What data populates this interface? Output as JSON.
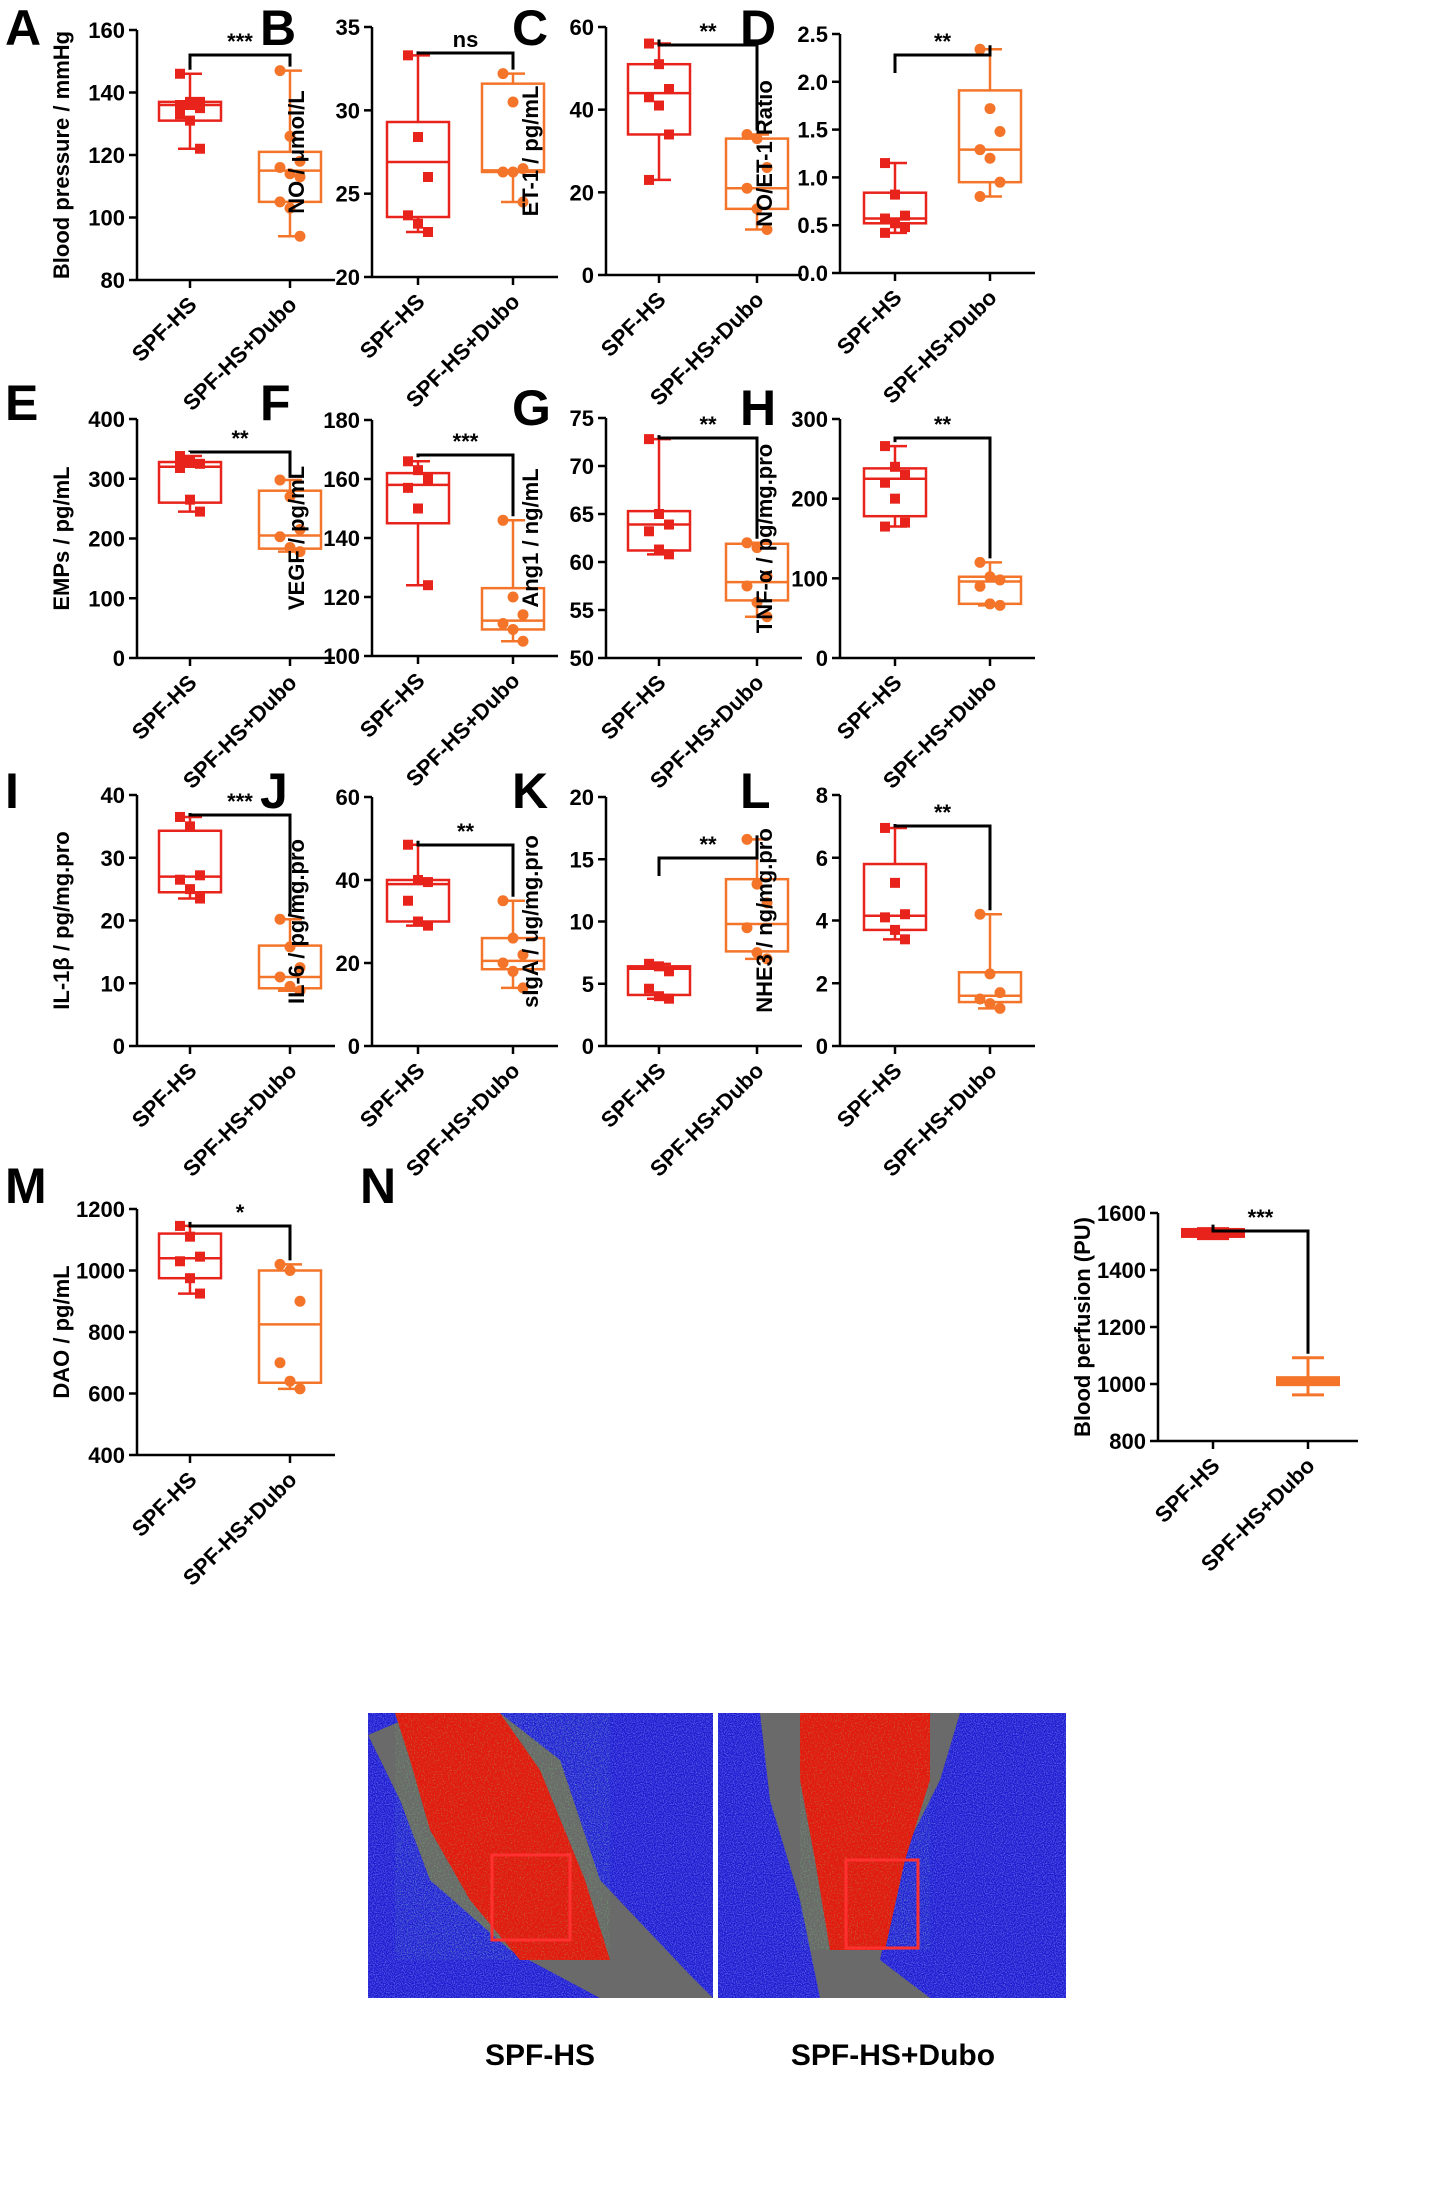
{
  "colors": {
    "group1": "#e8231c",
    "group2": "#f4752a",
    "axis": "#000000",
    "tissue_gray": "#6a6a6a",
    "perfusion_blue": "#1a1ad0",
    "perfusion_red": "#e21a10"
  },
  "group_labels": [
    "SPF-HS",
    "SPF-HS+Dubo"
  ],
  "images": {
    "left_label": "SPF-HS",
    "right_label": "SPF-HS+Dubo"
  },
  "chart_data": [
    {
      "id": "A",
      "letter": "A",
      "type": "box",
      "ylabel": "Blood pressure / mmHg",
      "ylim": [
        80,
        160
      ],
      "yticks": [
        80,
        100,
        120,
        140,
        160
      ],
      "significance": "***",
      "groups": [
        {
          "name": "SPF-HS",
          "min": 122,
          "q1": 131,
          "median": 136,
          "q3": 137,
          "max": 146,
          "points": [
            146,
            137,
            137,
            136,
            136,
            135,
            133,
            131,
            122
          ]
        },
        {
          "name": "SPF-HS+Dubo",
          "min": 94,
          "q1": 105,
          "median": 115,
          "q3": 121,
          "max": 147,
          "points": [
            147,
            126,
            118,
            116,
            114,
            113,
            105,
            103,
            94
          ]
        }
      ]
    },
    {
      "id": "B",
      "letter": "B",
      "type": "box",
      "ylabel": "NO / μmol/L",
      "ylim": [
        20,
        35
      ],
      "yticks": [
        20,
        25,
        30,
        35
      ],
      "significance": "ns",
      "groups": [
        {
          "name": "SPF-HS",
          "min": 22.7,
          "q1": 23.6,
          "median": 26.9,
          "q3": 29.3,
          "max": 33.3,
          "points": [
            33.3,
            28.4,
            26.0,
            23.7,
            23.2,
            22.7
          ]
        },
        {
          "name": "SPF-HS+Dubo",
          "min": 24.5,
          "q1": 26.3,
          "median": 26.4,
          "q3": 31.6,
          "max": 32.2,
          "points": [
            32.2,
            30.5,
            26.5,
            26.3,
            26.3,
            24.5
          ]
        }
      ]
    },
    {
      "id": "C",
      "letter": "C",
      "type": "box",
      "ylabel": "ET-1 / pg/mL",
      "ylim": [
        0,
        60
      ],
      "yticks": [
        0,
        20,
        40,
        60
      ],
      "significance": "**",
      "groups": [
        {
          "name": "SPF-HS",
          "min": 23,
          "q1": 34,
          "median": 44,
          "q3": 51,
          "max": 56,
          "points": [
            56,
            51,
            45,
            43,
            41,
            34,
            23
          ]
        },
        {
          "name": "SPF-HS+Dubo",
          "min": 11,
          "q1": 16,
          "median": 21,
          "q3": 33,
          "max": 34,
          "points": [
            34,
            33,
            26,
            21,
            16,
            11
          ]
        }
      ]
    },
    {
      "id": "D",
      "letter": "D",
      "type": "box",
      "ylabel": "NO/ET-1 Ratio",
      "ylim": [
        0.0,
        2.5
      ],
      "yticks": [
        0.0,
        0.5,
        1.0,
        1.5,
        2.0,
        2.5
      ],
      "tick_decimals": 1,
      "significance": "**",
      "groups": [
        {
          "name": "SPF-HS",
          "min": 0.42,
          "q1": 0.52,
          "median": 0.57,
          "q3": 0.84,
          "max": 1.15,
          "points": [
            1.15,
            0.82,
            0.6,
            0.57,
            0.52,
            0.48,
            0.42
          ]
        },
        {
          "name": "SPF-HS+Dubo",
          "min": 0.8,
          "q1": 0.95,
          "median": 1.29,
          "q3": 1.91,
          "max": 2.34,
          "points": [
            2.34,
            1.72,
            1.48,
            1.29,
            1.2,
            0.95,
            0.8
          ]
        }
      ]
    },
    {
      "id": "E",
      "letter": "E",
      "type": "box",
      "ylabel": "EMPs / pg/mL",
      "ylim": [
        0,
        400
      ],
      "yticks": [
        0,
        100,
        200,
        300,
        400
      ],
      "significance": "**",
      "groups": [
        {
          "name": "SPF-HS",
          "min": 245,
          "q1": 260,
          "median": 320,
          "q3": 328,
          "max": 338,
          "points": [
            338,
            330,
            325,
            318,
            265,
            245
          ]
        },
        {
          "name": "SPF-HS+Dubo",
          "min": 178,
          "q1": 183,
          "median": 205,
          "q3": 280,
          "max": 298,
          "points": [
            298,
            270,
            215,
            203,
            185,
            178
          ]
        }
      ]
    },
    {
      "id": "F",
      "letter": "F",
      "type": "box",
      "ylabel": "VEGF / pg/mL",
      "ylim": [
        100,
        180
      ],
      "yticks": [
        100,
        120,
        140,
        160,
        180
      ],
      "significance": "***",
      "groups": [
        {
          "name": "SPF-HS",
          "min": 124,
          "q1": 145,
          "median": 158,
          "q3": 162,
          "max": 166,
          "points": [
            166,
            163,
            160,
            157,
            150,
            124
          ]
        },
        {
          "name": "SPF-HS+Dubo",
          "min": 105,
          "q1": 109,
          "median": 112,
          "q3": 123,
          "max": 146,
          "points": [
            146,
            120,
            114,
            111,
            109,
            105
          ]
        }
      ]
    },
    {
      "id": "G",
      "letter": "G",
      "type": "box",
      "ylabel": "Ang1 / ng/mL",
      "ylim": [
        50,
        75
      ],
      "yticks": [
        50,
        55,
        60,
        65,
        70,
        75
      ],
      "significance": "**",
      "groups": [
        {
          "name": "SPF-HS",
          "min": 60.8,
          "q1": 61.2,
          "median": 63.9,
          "q3": 65.3,
          "max": 72.8,
          "points": [
            72.8,
            65.0,
            63.9,
            63.2,
            61.3,
            60.8
          ]
        },
        {
          "name": "SPF-HS+Dubo",
          "min": 54.3,
          "q1": 56.0,
          "median": 57.9,
          "q3": 61.9,
          "max": 62.0,
          "points": [
            62.0,
            61.5,
            58.5,
            57.5,
            55.8,
            54.3
          ]
        }
      ]
    },
    {
      "id": "H",
      "letter": "H",
      "type": "box",
      "ylabel": "TNF-α / pg/mg.pro",
      "ylim": [
        0,
        300
      ],
      "yticks": [
        0,
        100,
        200,
        300
      ],
      "significance": "**",
      "groups": [
        {
          "name": "SPF-HS",
          "min": 165,
          "q1": 178,
          "median": 225,
          "q3": 238,
          "max": 266,
          "points": [
            266,
            240,
            230,
            220,
            200,
            170,
            165
          ]
        },
        {
          "name": "SPF-HS+Dubo",
          "min": 66,
          "q1": 68,
          "median": 96,
          "q3": 102,
          "max": 120,
          "points": [
            120,
            102,
            98,
            90,
            68,
            66
          ]
        }
      ]
    },
    {
      "id": "I",
      "letter": "I",
      "type": "box",
      "ylabel": "IL-1β / pg/mg.pro",
      "ylim": [
        0,
        40
      ],
      "yticks": [
        0,
        10,
        20,
        30,
        40
      ],
      "significance": "***",
      "groups": [
        {
          "name": "SPF-HS",
          "min": 23.5,
          "q1": 24.5,
          "median": 27.0,
          "q3": 34.3,
          "max": 36.5,
          "points": [
            36.5,
            35.0,
            27.2,
            26.5,
            25.0,
            23.5
          ]
        },
        {
          "name": "SPF-HS+Dubo",
          "min": 8.8,
          "q1": 9.2,
          "median": 11.0,
          "q3": 16.0,
          "max": 20.2,
          "points": [
            20.2,
            15.8,
            12.5,
            11.0,
            9.5,
            8.8
          ]
        }
      ]
    },
    {
      "id": "J",
      "letter": "J",
      "type": "box",
      "ylabel": "IL-6 / pg/mg.pro",
      "ylim": [
        0,
        60
      ],
      "yticks": [
        0,
        20,
        40,
        60
      ],
      "significance": "**",
      "groups": [
        {
          "name": "SPF-HS",
          "min": 29,
          "q1": 30,
          "median": 39,
          "q3": 40,
          "max": 48.5,
          "points": [
            48.5,
            40,
            39.5,
            35,
            30,
            29
          ]
        },
        {
          "name": "SPF-HS+Dubo",
          "min": 14,
          "q1": 18.5,
          "median": 20.5,
          "q3": 26,
          "max": 35,
          "points": [
            35,
            26,
            22,
            20,
            18,
            14
          ]
        }
      ]
    },
    {
      "id": "K",
      "letter": "K",
      "type": "box",
      "ylabel": "sIgA / ug/mg.pro",
      "ylim": [
        0,
        20
      ],
      "yticks": [
        0,
        5,
        10,
        15,
        20
      ],
      "significance": "**",
      "groups": [
        {
          "name": "SPF-HS",
          "min": 3.8,
          "q1": 4.1,
          "median": 6.2,
          "q3": 6.4,
          "max": 6.6,
          "points": [
            6.6,
            6.4,
            6.0,
            4.6,
            4.0,
            3.8
          ]
        },
        {
          "name": "SPF-HS+Dubo",
          "min": 7.0,
          "q1": 7.6,
          "median": 9.8,
          "q3": 13.4,
          "max": 16.6,
          "points": [
            16.6,
            13.0,
            11.5,
            9.5,
            7.5,
            7.0
          ]
        }
      ]
    },
    {
      "id": "L",
      "letter": "L",
      "type": "box",
      "ylabel": "NHE3 / ng/mg.pro",
      "ylim": [
        0,
        8
      ],
      "yticks": [
        0,
        2,
        4,
        6,
        8
      ],
      "significance": "**",
      "groups": [
        {
          "name": "SPF-HS",
          "min": 3.4,
          "q1": 3.7,
          "median": 4.15,
          "q3": 5.8,
          "max": 6.95,
          "points": [
            6.95,
            5.2,
            4.2,
            4.1,
            3.7,
            3.4
          ]
        },
        {
          "name": "SPF-HS+Dubo",
          "min": 1.2,
          "q1": 1.4,
          "median": 1.6,
          "q3": 2.35,
          "max": 4.2,
          "points": [
            4.2,
            2.3,
            1.7,
            1.5,
            1.35,
            1.2
          ]
        }
      ]
    },
    {
      "id": "M",
      "letter": "M",
      "type": "box",
      "ylabel": "DAO / pg/mL",
      "ylim": [
        400,
        1200
      ],
      "yticks": [
        400,
        600,
        800,
        1000,
        1200
      ],
      "significance": "*",
      "groups": [
        {
          "name": "SPF-HS",
          "min": 925,
          "q1": 975,
          "median": 1040,
          "q3": 1120,
          "max": 1145,
          "points": [
            1145,
            1110,
            1045,
            1030,
            975,
            925
          ]
        },
        {
          "name": "SPF-HS+Dubo",
          "min": 615,
          "q1": 635,
          "median": 825,
          "q3": 1000,
          "max": 1020,
          "points": [
            1020,
            1000,
            900,
            700,
            640,
            615
          ]
        }
      ]
    },
    {
      "id": "N",
      "letter": "N",
      "type": "mean_error",
      "ylabel": "Blood perfusion (PU)",
      "ylim": [
        800,
        1600
      ],
      "yticks": [
        800,
        1000,
        1200,
        1400,
        1600
      ],
      "significance": "***",
      "groups": [
        {
          "name": "SPF-HS",
          "mean": 1530,
          "low": 1510,
          "high": 1545
        },
        {
          "name": "SPF-HS+Dubo",
          "mean": 1010,
          "low": 962,
          "high": 1092
        }
      ]
    }
  ]
}
